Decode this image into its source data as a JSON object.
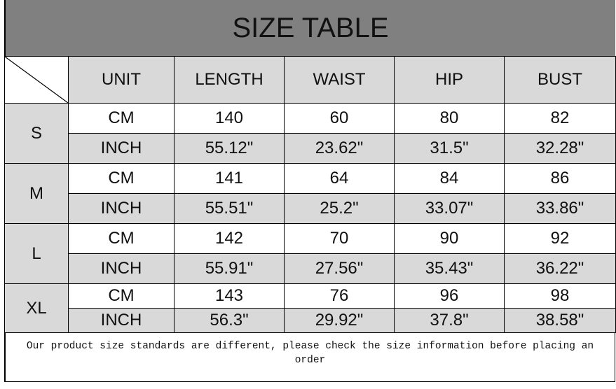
{
  "title": "SIZE TABLE",
  "headers": [
    "UNIT",
    "LENGTH",
    "WAIST",
    "HIP",
    "BUST"
  ],
  "sizes": [
    {
      "size": "S",
      "cm": {
        "unit": "CM",
        "values": [
          "140",
          "60",
          "80",
          "82"
        ]
      },
      "inch": {
        "unit": "INCH",
        "values": [
          "55.12\"",
          "23.62\"",
          "31.5\"",
          "32.28\""
        ]
      }
    },
    {
      "size": "M",
      "cm": {
        "unit": "CM",
        "values": [
          "141",
          "64",
          "84",
          "86"
        ]
      },
      "inch": {
        "unit": "INCH",
        "values": [
          "55.51\"",
          "25.2\"",
          "33.07\"",
          "33.86\""
        ]
      }
    },
    {
      "size": "L",
      "cm": {
        "unit": "CM",
        "values": [
          "142",
          "70",
          "90",
          "92"
        ]
      },
      "inch": {
        "unit": "INCH",
        "values": [
          "55.91\"",
          "27.56\"",
          "35.43\"",
          "36.22\""
        ]
      }
    },
    {
      "size": "XL",
      "cm": {
        "unit": "CM",
        "values": [
          "143",
          "76",
          "96",
          "98"
        ]
      },
      "inch": {
        "unit": "INCH",
        "values": [
          "56.3\"",
          "29.92\"",
          "37.8\"",
          "38.58\""
        ]
      }
    }
  ],
  "note": "Our product size standards are different, please check the size information before placing an order",
  "colors": {
    "title_bg": "#808080",
    "cell_gray": "#d9d9d9"
  }
}
